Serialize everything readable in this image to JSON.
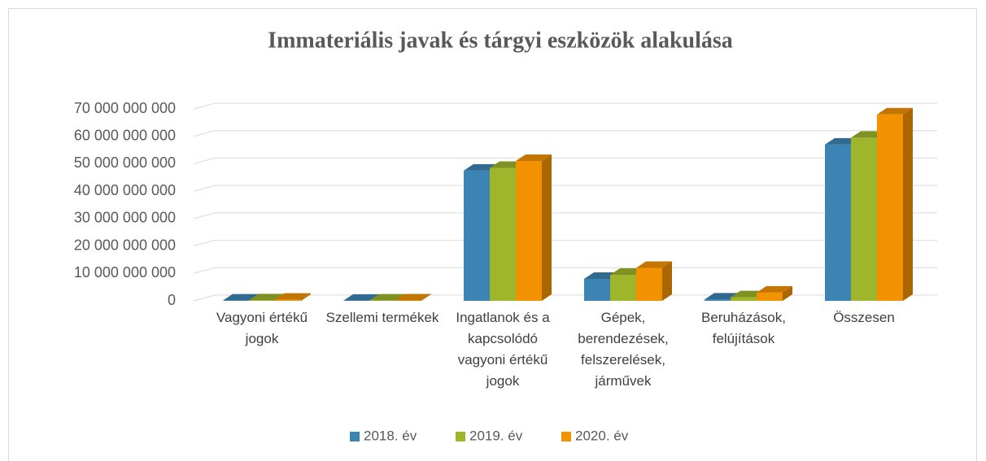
{
  "chart_data": {
    "type": "bar3d",
    "title": "Immateriális javak és tárgyi eszközök alakulása",
    "categories": [
      "Vagyoni értékű jogok",
      "Szellemi termékek",
      "Ingatlanok és a kapcsolódó vagyoni értékű jogok",
      "Gépek, berendezések, felszerelések, járművek",
      "Beruházások, felújítások",
      "Összesen"
    ],
    "series": [
      {
        "name": "2018. év",
        "color": "#3c84b4",
        "values": [
          100000000,
          50000000,
          47500000000,
          8000000000,
          500000000,
          57000000000
        ]
      },
      {
        "name": "2019. év",
        "color": "#9fb52c",
        "values": [
          200000000,
          100000000,
          48500000000,
          9500000000,
          1300000000,
          59500000000
        ]
      },
      {
        "name": "2020. év",
        "color": "#f39200",
        "values": [
          400000000,
          150000000,
          51000000000,
          12000000000,
          3000000000,
          68000000000
        ]
      }
    ],
    "ylim": [
      0,
      70000000000
    ],
    "yticks": [
      0,
      {
        "value": 10000000000,
        "label": "10 000 000 000"
      },
      {
        "value": 20000000000,
        "label": "20 000 000 000"
      },
      {
        "value": 30000000000,
        "label": "30 000 000 000"
      },
      {
        "value": 40000000000,
        "label": "40 000 000 000"
      },
      {
        "value": 50000000000,
        "label": "50 000 000 000"
      },
      {
        "value": 60000000000,
        "label": "60 000 000 000"
      },
      {
        "value": 70000000000,
        "label": "70 000 000 000"
      }
    ],
    "grid": true,
    "legend": "bottom"
  }
}
